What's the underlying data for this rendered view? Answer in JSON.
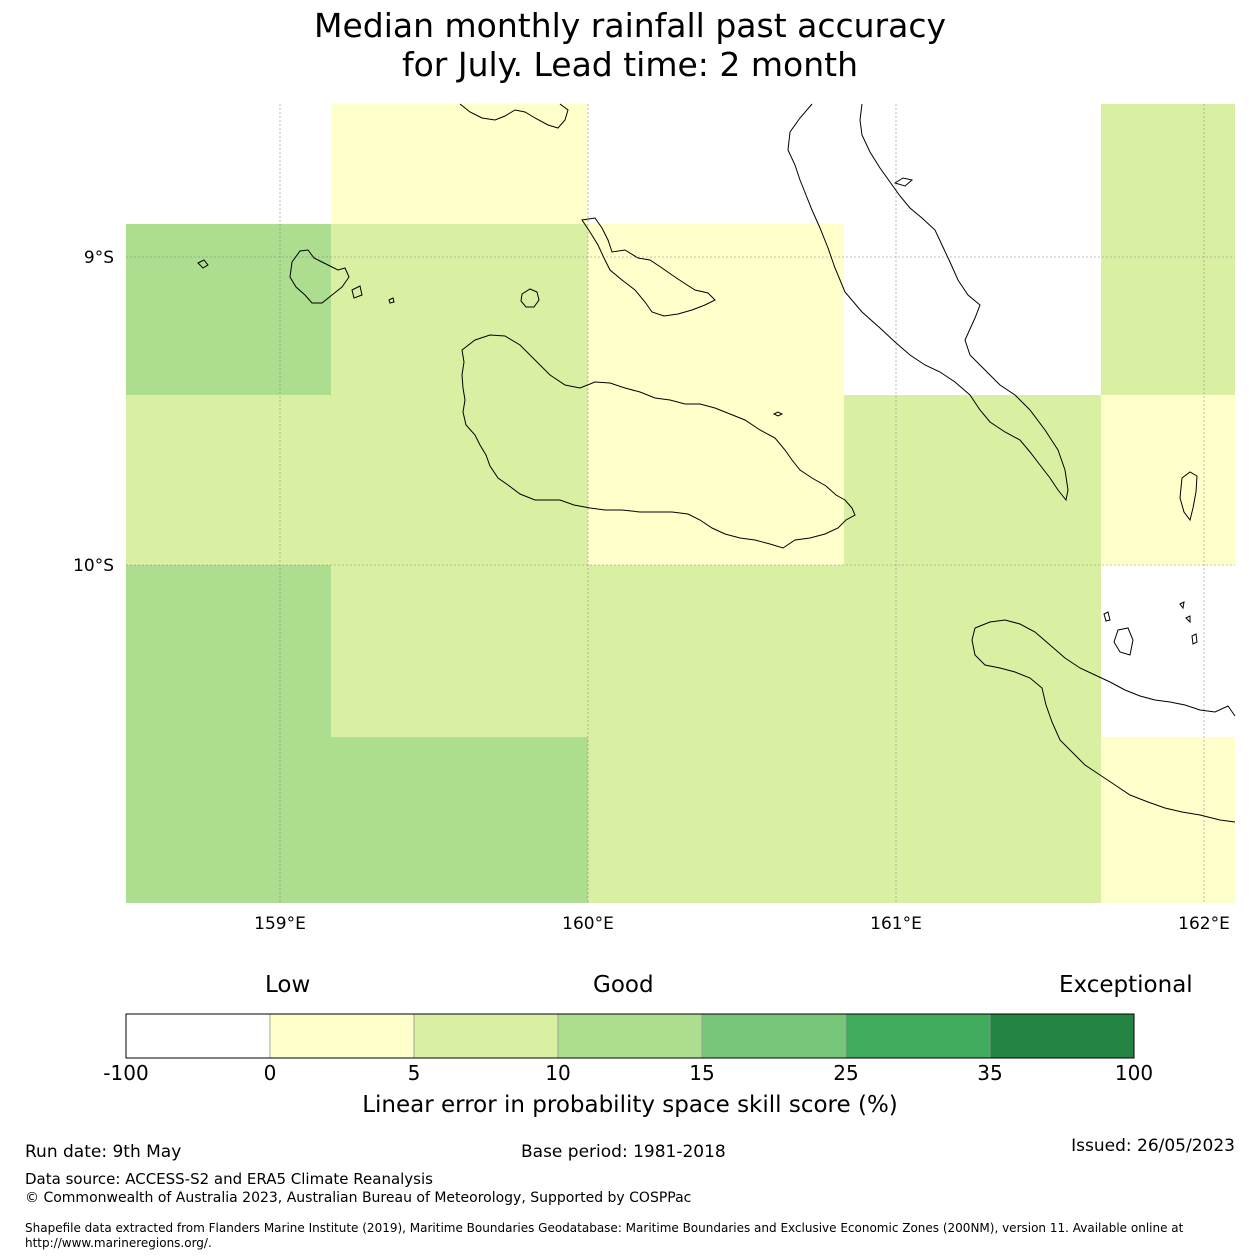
{
  "title": {
    "line1": "Median monthly rainfall past accuracy",
    "line2": "for July. Lead time: 2 month"
  },
  "map": {
    "lat_labels": [
      "9°S",
      "10°S"
    ],
    "lon_labels": [
      "159°E",
      "160°E",
      "161°E",
      "162°E"
    ],
    "category_colors": {
      "neg": "#ffffff",
      "0_5": "#ffffcc",
      "5_10": "#d9f0a3",
      "10_15": "#addd8e",
      "15_25": "#78c679",
      "25_35": "#41ab5d",
      "35_100": "#238443"
    },
    "grid_cells": [
      {
        "row": 0,
        "col": 0,
        "cat": "neg"
      },
      {
        "row": 0,
        "col": 1,
        "cat": "0_5"
      },
      {
        "row": 0,
        "col": 2,
        "cat": "neg"
      },
      {
        "row": 0,
        "col": 3,
        "cat": "neg"
      },
      {
        "row": 0,
        "col": 4,
        "cat": "5_10"
      },
      {
        "row": 1,
        "col": 0,
        "cat": "10_15"
      },
      {
        "row": 1,
        "col": 1,
        "cat": "5_10"
      },
      {
        "row": 1,
        "col": 2,
        "cat": "0_5"
      },
      {
        "row": 1,
        "col": 3,
        "cat": "neg"
      },
      {
        "row": 1,
        "col": 4,
        "cat": "5_10"
      },
      {
        "row": 2,
        "col": 0,
        "cat": "5_10"
      },
      {
        "row": 2,
        "col": 1,
        "cat": "5_10"
      },
      {
        "row": 2,
        "col": 2,
        "cat": "0_5"
      },
      {
        "row": 2,
        "col": 3,
        "cat": "5_10"
      },
      {
        "row": 2,
        "col": 4,
        "cat": "0_5"
      },
      {
        "row": 3,
        "col": 0,
        "cat": "10_15"
      },
      {
        "row": 3,
        "col": 1,
        "cat": "5_10"
      },
      {
        "row": 3,
        "col": 2,
        "cat": "5_10"
      },
      {
        "row": 3,
        "col": 3,
        "cat": "5_10"
      },
      {
        "row": 3,
        "col": 4,
        "cat": "neg"
      },
      {
        "row": 4,
        "col": 0,
        "cat": "10_15"
      },
      {
        "row": 4,
        "col": 1,
        "cat": "10_15"
      },
      {
        "row": 4,
        "col": 2,
        "cat": "5_10"
      },
      {
        "row": 4,
        "col": 3,
        "cat": "5_10"
      },
      {
        "row": 4,
        "col": 4,
        "cat": "0_5"
      }
    ]
  },
  "legend": {
    "low": "Low",
    "good": "Good",
    "exceptional": "Exceptional",
    "ticks": [
      "-100",
      "0",
      "5",
      "10",
      "15",
      "25",
      "35",
      "100"
    ],
    "title": "Linear error in probability space skill score (%)"
  },
  "footer": {
    "run_date": "Run date: 9th May",
    "base_period": "Base period: 1981-2018",
    "issued": "Issued: 26/05/2023",
    "data_source": "Data source: ACCESS-S2 and ERA5 Climate Reanalysis",
    "copyright": "© Commonwealth of Australia 2023, Australian Bureau of Meteorology, Supported by COSPPac",
    "shapefile_line1": "Shapefile data extracted from Flanders Marine Institute (2019), Maritime Boundaries Geodatabase: Maritime Boundaries and Exclusive Economic Zones (200NM), version 11. Available online at",
    "shapefile_line2": "http://www.marineregions.org/."
  }
}
